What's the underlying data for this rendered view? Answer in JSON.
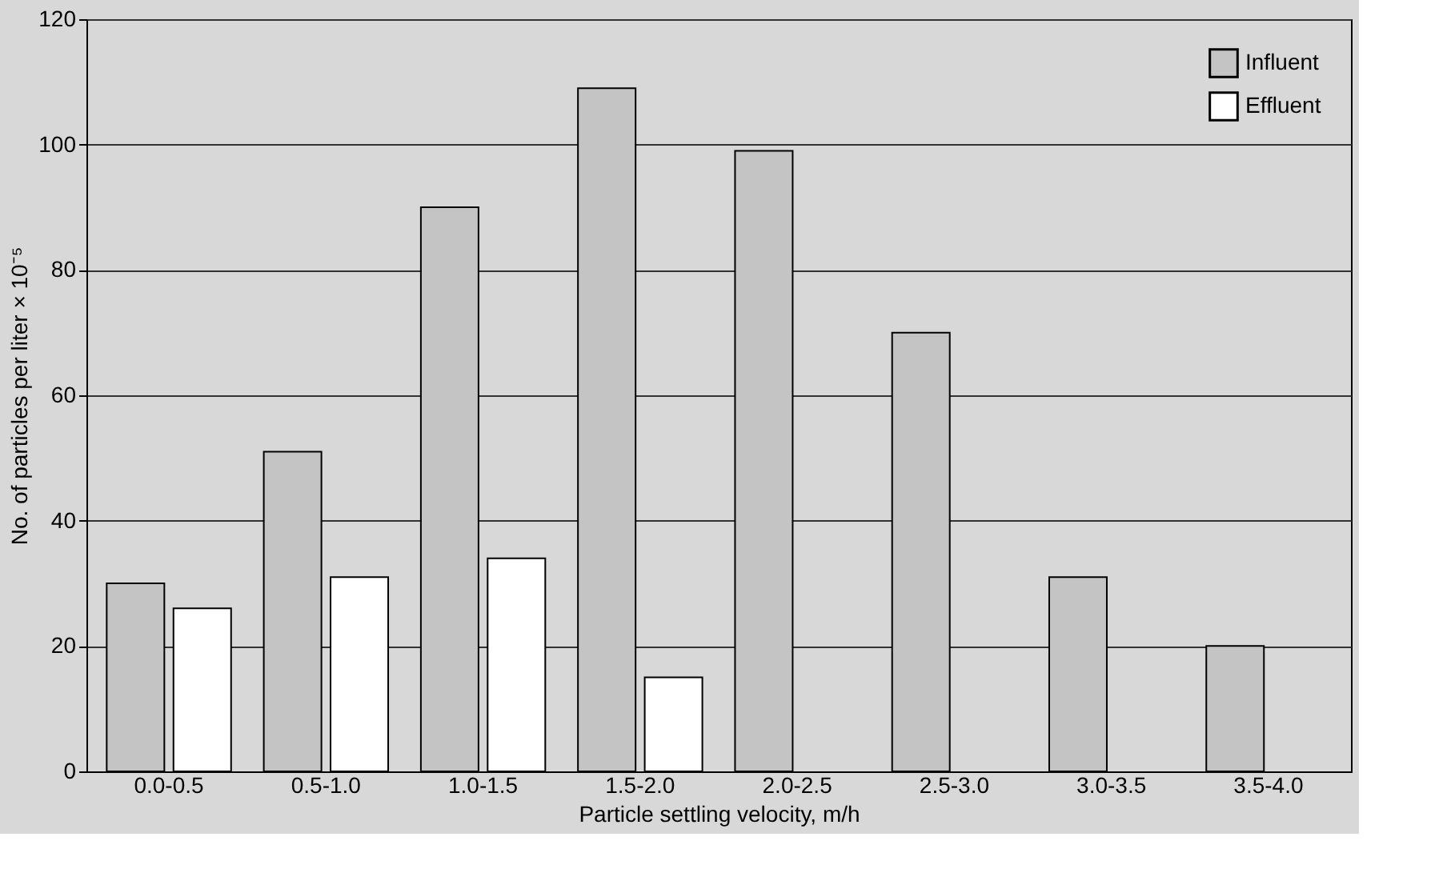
{
  "chart_data": {
    "type": "bar",
    "xlabel": "Particle settling velocity, m/h",
    "ylabel": "No. of particles per liter × 10⁻⁵",
    "categories": [
      "0.0-0.5",
      "0.5-1.0",
      "1.0-1.5",
      "1.5-2.0",
      "2.0-2.5",
      "2.5-3.0",
      "3.0-3.5",
      "3.5-4.0"
    ],
    "series": [
      {
        "name": "Influent",
        "color": "#c4c4c4",
        "values": [
          30,
          51,
          90,
          109,
          99,
          70,
          31,
          20
        ]
      },
      {
        "name": "Effluent",
        "color": "#ffffff",
        "values": [
          26,
          31,
          34,
          15,
          null,
          null,
          null,
          null
        ]
      }
    ],
    "ylim": [
      0,
      120
    ],
    "yticks": [
      0,
      20,
      40,
      60,
      80,
      100,
      120
    ],
    "grid": "y",
    "legend": "top right"
  }
}
